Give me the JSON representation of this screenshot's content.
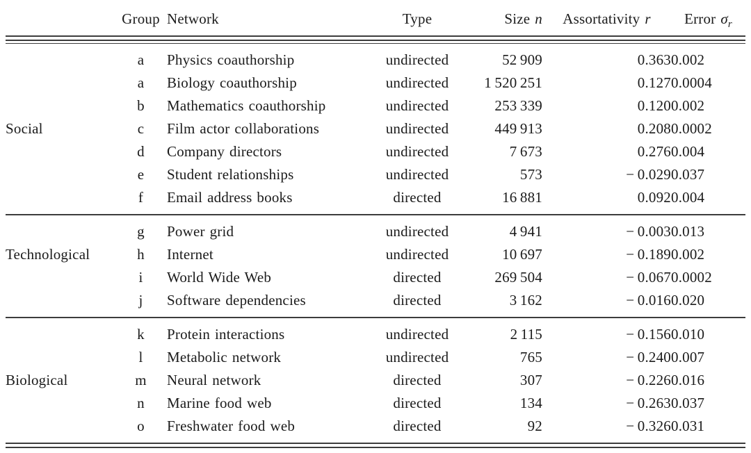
{
  "table": {
    "columns": [
      {
        "label": "Group"
      },
      {
        "label": "Network"
      },
      {
        "label": "Type"
      },
      {
        "label": "Size",
        "symbol": "n"
      },
      {
        "label": "Assortativity",
        "symbol": "r"
      },
      {
        "label": "Error",
        "symbol": "σ",
        "symbol_sub": "r"
      }
    ],
    "sections": [
      {
        "category": "Social",
        "label_row": 3,
        "rows": [
          {
            "group": "a",
            "network": "Physics coauthorship",
            "type": "undirected",
            "size": "52 909",
            "assortativity": "0.363",
            "error": "0.002"
          },
          {
            "group": "a",
            "network": "Biology coauthorship",
            "type": "undirected",
            "size": "1 520 251",
            "assortativity": "0.127",
            "error": "0.0004"
          },
          {
            "group": "b",
            "network": "Mathematics coauthorship",
            "type": "undirected",
            "size": "253 339",
            "assortativity": "0.120",
            "error": "0.002"
          },
          {
            "group": "c",
            "network": "Film actor collaborations",
            "type": "undirected",
            "size": "449 913",
            "assortativity": "0.208",
            "error": "0.0002"
          },
          {
            "group": "d",
            "network": "Company directors",
            "type": "undirected",
            "size": "7 673",
            "assortativity": "0.276",
            "error": "0.004"
          },
          {
            "group": "e",
            "network": "Student relationships",
            "type": "undirected",
            "size": "573",
            "assortativity": "− 0.029",
            "error": "0.037"
          },
          {
            "group": "f",
            "network": "Email address books",
            "type": "directed",
            "size": "16 881",
            "assortativity": "0.092",
            "error": "0.004"
          }
        ]
      },
      {
        "category": "Technological",
        "label_row": 1,
        "rows": [
          {
            "group": "g",
            "network": "Power grid",
            "type": "undirected",
            "size": "4 941",
            "assortativity": "− 0.003",
            "error": "0.013"
          },
          {
            "group": "h",
            "network": "Internet",
            "type": "undirected",
            "size": "10 697",
            "assortativity": "− 0.189",
            "error": "0.002"
          },
          {
            "group": "i",
            "network": "World Wide Web",
            "type": "directed",
            "size": "269 504",
            "assortativity": "− 0.067",
            "error": "0.0002"
          },
          {
            "group": "j",
            "network": "Software dependencies",
            "type": "directed",
            "size": "3 162",
            "assortativity": "− 0.016",
            "error": "0.020"
          }
        ]
      },
      {
        "category": "Biological",
        "label_row": 2,
        "rows": [
          {
            "group": "k",
            "network": "Protein interactions",
            "type": "undirected",
            "size": "2 115",
            "assortativity": "− 0.156",
            "error": "0.010"
          },
          {
            "group": "l",
            "network": "Metabolic network",
            "type": "undirected",
            "size": "765",
            "assortativity": "− 0.240",
            "error": "0.007"
          },
          {
            "group": "m",
            "network": "Neural network",
            "type": "directed",
            "size": "307",
            "assortativity": "− 0.226",
            "error": "0.016"
          },
          {
            "group": "n",
            "network": "Marine food web",
            "type": "directed",
            "size": "134",
            "assortativity": "− 0.263",
            "error": "0.037"
          },
          {
            "group": "o",
            "network": "Freshwater food web",
            "type": "directed",
            "size": "92",
            "assortativity": "− 0.326",
            "error": "0.031"
          }
        ]
      }
    ]
  },
  "chart_data": {
    "type": "table",
    "title": "Size n, degree assortativity coefficient r, and expected error sigma_r for various networks",
    "columns": [
      "Group",
      "Network",
      "Type",
      "Size n",
      "Assortativity r",
      "Error σ_r"
    ],
    "rows": [
      [
        "Social",
        "a",
        "Physics coauthorship",
        "undirected",
        52909,
        0.363,
        0.002
      ],
      [
        "Social",
        "a",
        "Biology coauthorship",
        "undirected",
        1520251,
        0.127,
        0.0004
      ],
      [
        "Social",
        "b",
        "Mathematics coauthorship",
        "undirected",
        253339,
        0.12,
        0.002
      ],
      [
        "Social",
        "c",
        "Film actor collaborations",
        "undirected",
        449913,
        0.208,
        0.0002
      ],
      [
        "Social",
        "d",
        "Company directors",
        "undirected",
        7673,
        0.276,
        0.004
      ],
      [
        "Social",
        "e",
        "Student relationships",
        "undirected",
        573,
        -0.029,
        0.037
      ],
      [
        "Social",
        "f",
        "Email address books",
        "directed",
        16881,
        0.092,
        0.004
      ],
      [
        "Technological",
        "g",
        "Power grid",
        "undirected",
        4941,
        -0.003,
        0.013
      ],
      [
        "Technological",
        "h",
        "Internet",
        "undirected",
        10697,
        -0.189,
        0.002
      ],
      [
        "Technological",
        "i",
        "World Wide Web",
        "directed",
        269504,
        -0.067,
        0.0002
      ],
      [
        "Technological",
        "j",
        "Software dependencies",
        "directed",
        3162,
        -0.016,
        0.02
      ],
      [
        "Biological",
        "k",
        "Protein interactions",
        "undirected",
        2115,
        -0.156,
        0.01
      ],
      [
        "Biological",
        "l",
        "Metabolic network",
        "undirected",
        765,
        -0.24,
        0.007
      ],
      [
        "Biological",
        "m",
        "Neural network",
        "directed",
        307,
        -0.226,
        0.016
      ],
      [
        "Biological",
        "n",
        "Marine food web",
        "directed",
        134,
        -0.263,
        0.037
      ],
      [
        "Biological",
        "o",
        "Freshwater food web",
        "directed",
        92,
        -0.326,
        0.031
      ]
    ]
  }
}
